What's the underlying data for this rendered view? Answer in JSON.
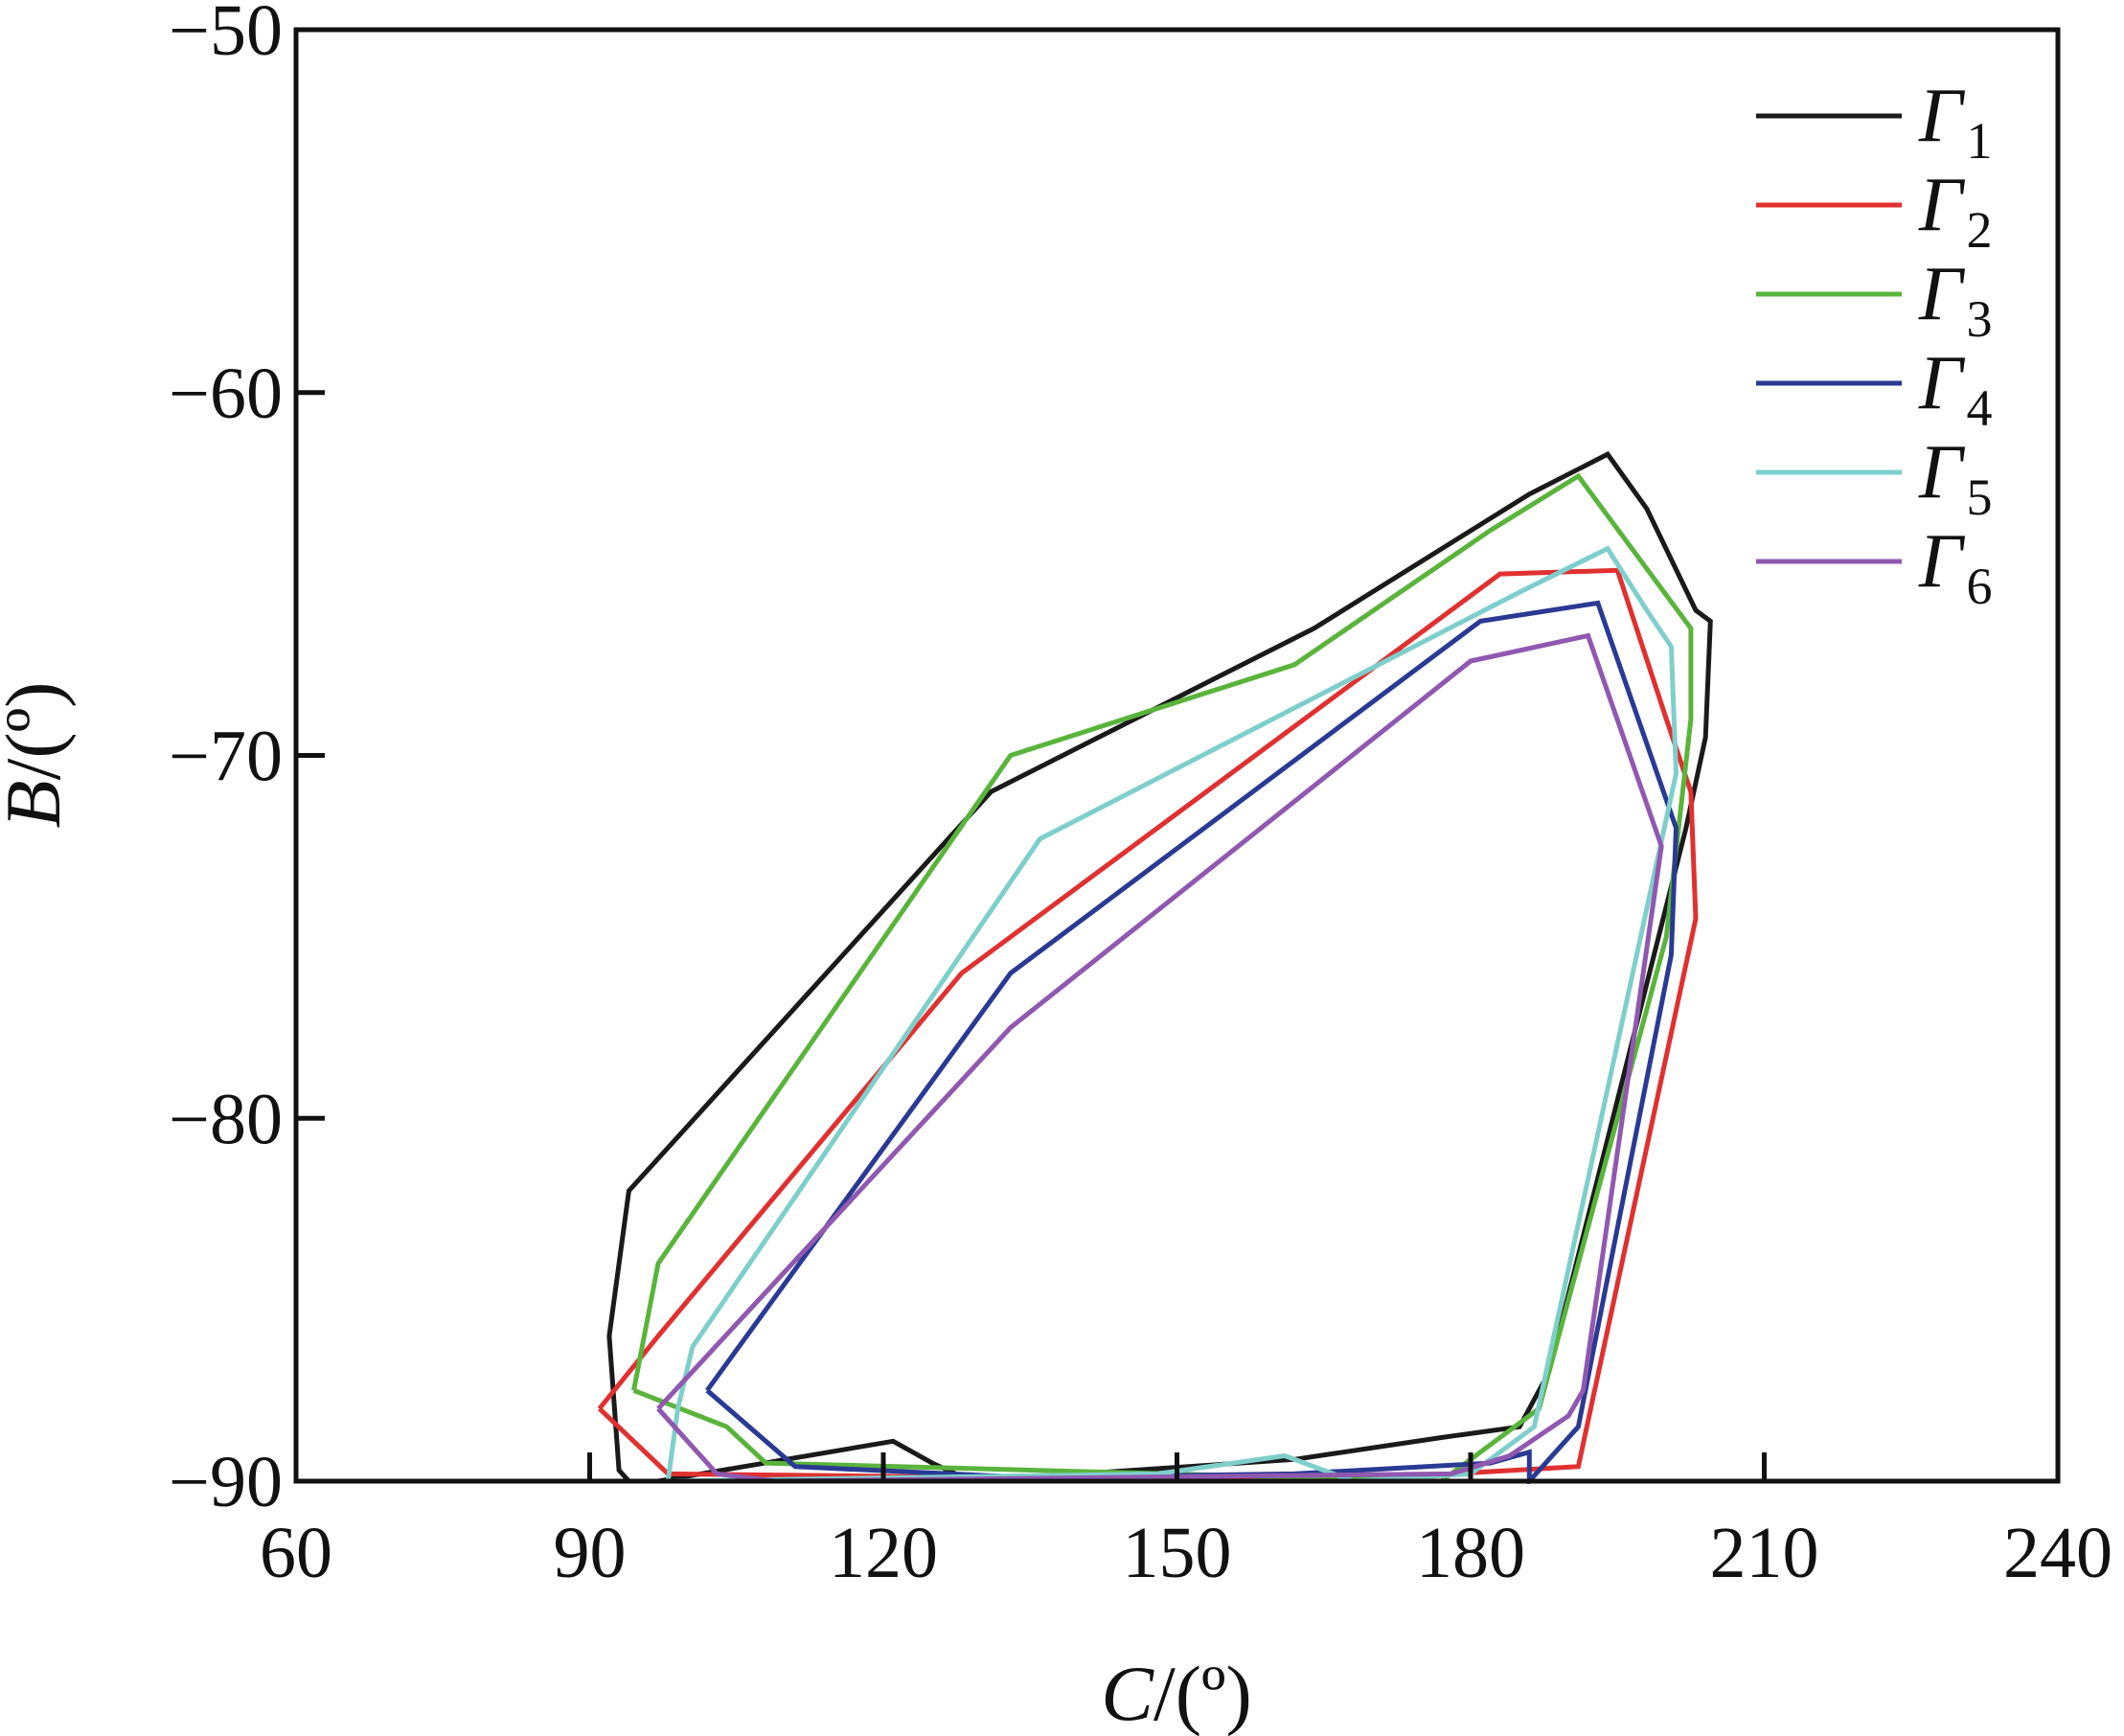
{
  "chart_data": {
    "type": "line",
    "xlabel": {
      "var": "C",
      "unit": "/(º)"
    },
    "ylabel": {
      "var": "B",
      "unit": "/(º)"
    },
    "xlim": [
      60,
      240
    ],
    "ylim": [
      -90,
      -50
    ],
    "xticks": [
      60,
      90,
      120,
      150,
      180,
      210,
      240
    ],
    "yticks": [
      -90,
      -80,
      -70,
      -60,
      -50
    ],
    "xtick_labels": [
      "60",
      "90",
      "120",
      "150",
      "180",
      "210",
      "240"
    ],
    "ytick_labels": [
      "−90",
      "−80",
      "−70",
      "−60",
      "−50"
    ],
    "grid": false,
    "legend_position": "top-right",
    "series": [
      {
        "name": "Γ",
        "sub": "1",
        "color": "#1a1a1a",
        "points": [
          [
            94,
            -90
          ],
          [
            93,
            -89.7
          ],
          [
            92,
            -86
          ],
          [
            94,
            -82
          ],
          [
            131,
            -71
          ],
          [
            164,
            -66.5
          ],
          [
            186,
            -62.8
          ],
          [
            194,
            -61.7
          ],
          [
            198,
            -63.2
          ],
          [
            203,
            -66
          ],
          [
            204.5,
            -66.3
          ],
          [
            204,
            -69.5
          ],
          [
            202,
            -72
          ],
          [
            188,
            -87
          ],
          [
            185,
            -88.5
          ],
          [
            177,
            -88.8
          ],
          [
            162,
            -89.4
          ],
          [
            129,
            -90
          ],
          [
            125,
            -89.5
          ],
          [
            121,
            -88.9
          ],
          [
            97,
            -90
          ]
        ]
      },
      {
        "name": "Γ",
        "sub": "2",
        "color": "#e03030",
        "points": [
          [
            91,
            -88
          ],
          [
            98,
            -89.8
          ],
          [
            165,
            -90
          ],
          [
            191,
            -89.6
          ],
          [
            203,
            -74.5
          ],
          [
            202.5,
            -71
          ],
          [
            200,
            -69
          ],
          [
            195,
            -64.9
          ],
          [
            183,
            -65
          ],
          [
            128,
            -76
          ],
          [
            97,
            -86
          ],
          [
            91,
            -88
          ]
        ]
      },
      {
        "name": "Γ",
        "sub": "3",
        "color": "#5ab43c",
        "points": [
          [
            94.5,
            -87.5
          ],
          [
            97,
            -84
          ],
          [
            133,
            -70
          ],
          [
            162,
            -67.5
          ],
          [
            182,
            -63.8
          ],
          [
            191,
            -62.3
          ],
          [
            202.5,
            -66.5
          ],
          [
            202.5,
            -69
          ],
          [
            200,
            -75
          ],
          [
            187,
            -88
          ],
          [
            183,
            -88.8
          ],
          [
            177,
            -90
          ],
          [
            108,
            -89.5
          ],
          [
            104,
            -88.5
          ],
          [
            94.5,
            -87.5
          ]
        ]
      },
      {
        "name": "Γ",
        "sub": "4",
        "color": "#2a3a94",
        "points": [
          [
            102,
            -87.5
          ],
          [
            111,
            -89.6
          ],
          [
            135,
            -89.9
          ],
          [
            162,
            -89.8
          ],
          [
            182,
            -89.5
          ],
          [
            186,
            -89.2
          ],
          [
            186,
            -90
          ],
          [
            191,
            -88.5
          ],
          [
            200.5,
            -75.5
          ],
          [
            201,
            -72
          ],
          [
            193,
            -65.8
          ],
          [
            181,
            -66.3
          ],
          [
            133,
            -76
          ],
          [
            102,
            -87.5
          ]
        ]
      },
      {
        "name": "Γ",
        "sub": "5",
        "color": "#7ecfcb",
        "points": [
          [
            98,
            -90
          ],
          [
            99,
            -88
          ],
          [
            100.5,
            -86.3
          ],
          [
            136,
            -72.3
          ],
          [
            185,
            -65.5
          ],
          [
            194,
            -64.3
          ],
          [
            198,
            -66
          ],
          [
            200.5,
            -67
          ],
          [
            201,
            -70.5
          ],
          [
            186.5,
            -88.5
          ],
          [
            180,
            -89.8
          ],
          [
            168,
            -90
          ],
          [
            161,
            -89.3
          ],
          [
            148,
            -89.8
          ],
          [
            98,
            -90
          ]
        ]
      },
      {
        "name": "Γ",
        "sub": "6",
        "color": "#9058b0",
        "points": [
          [
            97,
            -88
          ],
          [
            103,
            -89.8
          ],
          [
            109,
            -90
          ],
          [
            178,
            -89.8
          ],
          [
            184,
            -89.3
          ],
          [
            190,
            -88.2
          ],
          [
            191.5,
            -87.5
          ],
          [
            199.5,
            -72.5
          ],
          [
            192,
            -66.7
          ],
          [
            180,
            -67.4
          ],
          [
            133,
            -77.5
          ],
          [
            97,
            -88
          ]
        ]
      }
    ]
  }
}
